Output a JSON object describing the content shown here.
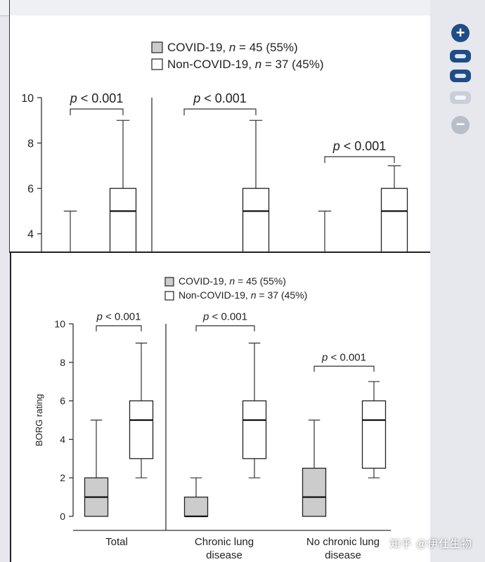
{
  "chart_data": {
    "type": "box",
    "ylabel": "BORG rating",
    "ylim": [
      0,
      10
    ],
    "yticks": [
      0,
      2,
      4,
      6,
      8,
      10
    ],
    "legend": [
      {
        "label": "COVID-19, n = 45 (55%)",
        "color": "#cccccc"
      },
      {
        "label": "Non-COVID-19, n = 37 (45%)",
        "color": "#ffffff"
      }
    ],
    "groups": [
      {
        "label_lines": [
          "Total"
        ],
        "p_label": "p < 0.001",
        "boxes": [
          {
            "series": "COVID-19",
            "min": 0,
            "q1": 0,
            "median": 1,
            "q3": 2,
            "max": 5
          },
          {
            "series": "Non-COVID-19",
            "min": 2,
            "q1": 3,
            "median": 5,
            "q3": 6,
            "max": 9
          }
        ]
      },
      {
        "label_lines": [
          "Chronic lung",
          "disease"
        ],
        "p_label": "p < 0.001",
        "boxes": [
          {
            "series": "COVID-19",
            "min": 0,
            "q1": 0,
            "median": 0,
            "q3": 1,
            "max": 2
          },
          {
            "series": "Non-COVID-19",
            "min": 2,
            "q1": 3,
            "median": 5,
            "q3": 6,
            "max": 9
          }
        ]
      },
      {
        "label_lines": [
          "No chronic lung",
          "disease"
        ],
        "p_label": "p < 0.001",
        "boxes": [
          {
            "series": "COVID-19",
            "min": 0,
            "q1": 0,
            "median": 1,
            "q3": 2.5,
            "max": 5
          },
          {
            "series": "Non-COVID-19",
            "min": 2,
            "q1": 2.5,
            "median": 5,
            "q3": 6,
            "max": 7
          }
        ]
      }
    ]
  },
  "ui": {
    "zoom_in": "+",
    "zoom_out": "−",
    "watermark": "知乎 @伊仕生物",
    "accent": "#1f4d86"
  }
}
